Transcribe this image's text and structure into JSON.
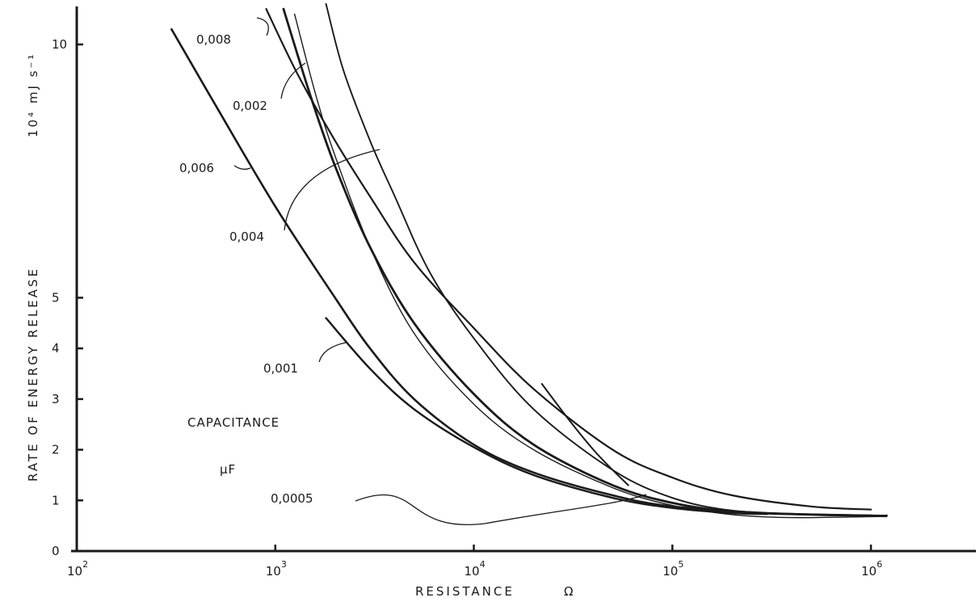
{
  "chart_data": {
    "type": "line",
    "xlabel": "RESISTANCE",
    "xlabel_unit": "Ω",
    "ylabel": "RATE OF ENERGY RELEASE",
    "ylabel_unit": "10⁴ mJ s⁻¹",
    "x_scale": "log",
    "xlim": [
      100,
      3000000
    ],
    "ylim": [
      0,
      10.8
    ],
    "x_ticks": [
      100,
      1000,
      10000,
      100000,
      1000000
    ],
    "x_tick_labels": [
      {
        "base": "10",
        "exp": "2"
      },
      {
        "base": "10",
        "exp": "3"
      },
      {
        "base": "10",
        "exp": "4"
      },
      {
        "base": "10",
        "exp": "5"
      },
      {
        "base": "10",
        "exp": "6"
      }
    ],
    "y_ticks": [
      0,
      1,
      2,
      3,
      4,
      5,
      10
    ],
    "y_tick_labels": [
      "0",
      "1",
      "2",
      "3",
      "4",
      "5",
      "10"
    ],
    "grid": false,
    "legend_title": "CAPACITANCE",
    "legend_unit": "μF",
    "series": [
      {
        "name": "0,008",
        "width": 2.2,
        "points": [
          [
            900,
            10.7
          ],
          [
            1300,
            9.4
          ],
          [
            2000,
            8.1
          ],
          [
            3000,
            7.0
          ],
          [
            5000,
            5.7
          ],
          [
            10000,
            4.4
          ],
          [
            20000,
            3.2
          ],
          [
            50000,
            2.0
          ],
          [
            100000,
            1.45
          ],
          [
            200000,
            1.1
          ],
          [
            500000,
            0.88
          ],
          [
            1000000,
            0.82
          ]
        ]
      },
      {
        "name": "0,002",
        "width": 2.8,
        "points": [
          [
            1100,
            10.7
          ],
          [
            1500,
            9.0
          ],
          [
            2000,
            7.6
          ],
          [
            3000,
            6.0
          ],
          [
            5000,
            4.5
          ],
          [
            10000,
            3.1
          ],
          [
            20000,
            2.1
          ],
          [
            50000,
            1.3
          ],
          [
            100000,
            0.95
          ],
          [
            200000,
            0.78
          ],
          [
            500000,
            0.72
          ],
          [
            1000000,
            0.7
          ]
        ]
      },
      {
        "name": "0,006",
        "width": 1.9,
        "points": [
          [
            1800,
            10.8
          ],
          [
            2200,
            9.5
          ],
          [
            3000,
            8.1
          ],
          [
            4000,
            7.0
          ],
          [
            6000,
            5.5
          ],
          [
            10000,
            4.2
          ],
          [
            20000,
            2.8
          ],
          [
            50000,
            1.6
          ],
          [
            100000,
            1.05
          ],
          [
            200000,
            0.8
          ],
          [
            500000,
            0.72
          ],
          [
            1000000,
            0.7
          ],
          [
            1200000,
            0.7
          ]
        ]
      },
      {
        "name": "0,004",
        "width": 1.4,
        "points": [
          [
            1250,
            10.6
          ],
          [
            1600,
            9.0
          ],
          [
            2000,
            7.8
          ],
          [
            3000,
            6.0
          ],
          [
            5000,
            4.3
          ],
          [
            10000,
            2.9
          ],
          [
            20000,
            2.0
          ],
          [
            50000,
            1.25
          ],
          [
            100000,
            0.9
          ],
          [
            200000,
            0.72
          ],
          [
            400000,
            0.66
          ],
          [
            1000000,
            0.68
          ],
          [
            1200000,
            0.68
          ]
        ]
      },
      {
        "name": "0,001",
        "width": 2.6,
        "points": [
          [
            300,
            10.3
          ],
          [
            500,
            8.8
          ],
          [
            1000,
            6.8
          ],
          [
            2000,
            5.0
          ],
          [
            3000,
            4.0
          ],
          [
            5000,
            3.0
          ],
          [
            10000,
            2.1
          ],
          [
            20000,
            1.55
          ],
          [
            50000,
            1.1
          ],
          [
            100000,
            0.88
          ],
          [
            300000,
            0.75
          ],
          [
            1000000,
            0.7
          ],
          [
            1200000,
            0.7
          ]
        ]
      },
      {
        "name": "0,0005",
        "width": 2.4,
        "points": [
          [
            1800,
            4.6
          ],
          [
            3000,
            3.6
          ],
          [
            5000,
            2.8
          ],
          [
            10000,
            2.05
          ],
          [
            20000,
            1.5
          ],
          [
            50000,
            1.05
          ],
          [
            100000,
            0.85
          ],
          [
            200000,
            0.75
          ],
          [
            300000,
            0.73
          ]
        ]
      },
      {
        "name": "",
        "width": 2.0,
        "points": [
          [
            22000,
            3.3
          ],
          [
            30000,
            2.6
          ],
          [
            40000,
            2.0
          ],
          [
            50000,
            1.6
          ],
          [
            60000,
            1.3
          ]
        ]
      }
    ],
    "annotations": [
      "0,008",
      "0,002",
      "0,006",
      "0,004",
      "0,001",
      "0,0005"
    ]
  }
}
